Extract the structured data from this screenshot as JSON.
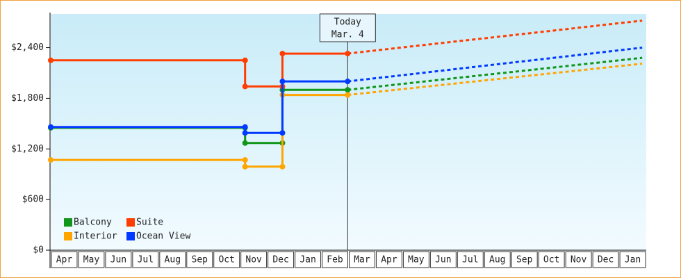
{
  "chart_data": {
    "type": "line",
    "categories": [
      "Apr",
      "May",
      "Jun",
      "Jul",
      "Aug",
      "Sep",
      "Oct",
      "Nov",
      "Dec",
      "Jan",
      "Feb",
      "Mar",
      "Apr",
      "May",
      "Jun",
      "Jul",
      "Aug",
      "Sep",
      "Oct",
      "Nov",
      "Dec",
      "Jan"
    ],
    "xlim": [
      0,
      22
    ],
    "ylim": [
      0,
      2800
    ],
    "yticks": [
      {
        "value": 0,
        "label": "$0"
      },
      {
        "value": 600,
        "label": "$600"
      },
      {
        "value": 1200,
        "label": "$1,200"
      },
      {
        "value": 1800,
        "label": "$1,800"
      },
      {
        "value": 2400,
        "label": "$2,400"
      }
    ],
    "annotation": {
      "lines": [
        "Today",
        "Mar. 4"
      ],
      "x": 10.97
    },
    "legend": "bottom-left",
    "series": [
      {
        "name": "Balcony",
        "color": "#109618",
        "x": [
          0,
          7.18,
          7.18,
          8.56,
          8.56,
          10.97
        ],
        "values": [
          1450,
          1450,
          1270,
          1270,
          1900,
          1900
        ],
        "forecast_x": [
          10.97,
          12,
          13,
          14,
          15,
          16,
          17,
          18,
          19,
          20,
          21,
          21.85
        ],
        "forecast_values": [
          1900,
          1936,
          1971,
          2006,
          2041,
          2076,
          2110,
          2145,
          2180,
          2215,
          2250,
          2280
        ]
      },
      {
        "name": "Suite",
        "color": "#ff3d00",
        "x": [
          0,
          7.18,
          7.18,
          8.56,
          8.56,
          10.97
        ],
        "values": [
          2250,
          2250,
          1940,
          1940,
          2330,
          2330
        ],
        "forecast_x": [
          10.97,
          12,
          13,
          14,
          15,
          16,
          17,
          18,
          19,
          20,
          21,
          21.85
        ],
        "forecast_values": [
          2330,
          2367,
          2403,
          2439,
          2475,
          2510,
          2546,
          2582,
          2618,
          2654,
          2690,
          2720
        ]
      },
      {
        "name": "Interior",
        "color": "#ffa500",
        "x": [
          0,
          7.18,
          7.18,
          8.56,
          8.56,
          10.97
        ],
        "values": [
          1070,
          1070,
          990,
          990,
          1840,
          1840
        ],
        "forecast_x": [
          10.97,
          12,
          13,
          14,
          15,
          16,
          17,
          18,
          19,
          20,
          21,
          21.85
        ],
        "forecast_values": [
          1840,
          1875,
          1909,
          1943,
          1977,
          2011,
          2045,
          2079,
          2113,
          2147,
          2181,
          2210
        ]
      },
      {
        "name": "Ocean View",
        "color": "#0039ff",
        "x": [
          0,
          7.18,
          7.18,
          8.56,
          8.56,
          10.97
        ],
        "values": [
          1460,
          1460,
          1390,
          1390,
          2000,
          2000
        ],
        "forecast_x": [
          10.97,
          12,
          13,
          14,
          15,
          16,
          17,
          18,
          19,
          20,
          21,
          21.85
        ],
        "forecast_values": [
          2000,
          2038,
          2074,
          2111,
          2148,
          2185,
          2222,
          2258,
          2295,
          2332,
          2369,
          2400
        ]
      }
    ]
  }
}
